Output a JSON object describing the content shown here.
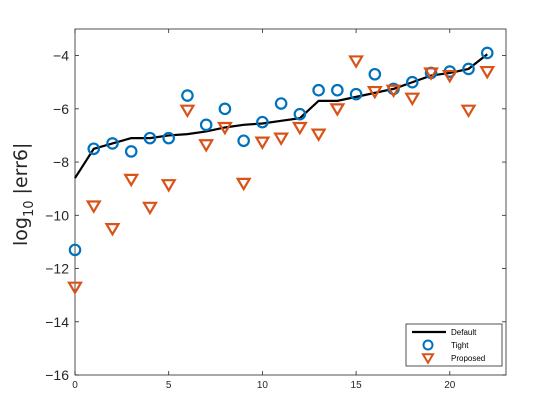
{
  "chart_data": {
    "type": "scatter",
    "ylabel": {
      "base": "log",
      "subscript": "10",
      "rest": " |err6|"
    },
    "xlim": [
      0,
      23
    ],
    "ylim": [
      -16,
      -3
    ],
    "x_ticks": [
      0,
      5,
      10,
      15,
      20
    ],
    "y_ticks": [
      -16,
      -14,
      -12,
      -10,
      -8,
      -6,
      -4
    ],
    "x_tick_labels": [
      "0",
      "5",
      "10",
      "15",
      "20"
    ],
    "y_tick_labels": [
      "−16",
      "−14",
      "−12",
      "−10",
      "−8",
      "−6",
      "−4"
    ],
    "grid": false,
    "legend_position": "bottom-right",
    "series": [
      {
        "name": "Default",
        "kind": "line",
        "color": "#000000",
        "x": [
          0,
          1,
          2,
          3,
          4,
          5,
          6,
          7,
          8,
          9,
          10,
          11,
          12,
          13,
          14,
          15,
          16,
          17,
          18,
          19,
          20,
          21,
          22
        ],
        "y": [
          -8.6,
          -7.5,
          -7.3,
          -7.1,
          -7.1,
          -7.0,
          -6.95,
          -6.85,
          -6.7,
          -6.6,
          -6.55,
          -6.45,
          -6.35,
          -5.7,
          -5.7,
          -5.55,
          -5.4,
          -5.25,
          -5.0,
          -4.75,
          -4.65,
          -4.5,
          -3.95
        ]
      },
      {
        "name": "Tight",
        "kind": "circle",
        "color": "#0072BD",
        "x": [
          0,
          1,
          2,
          3,
          4,
          5,
          6,
          7,
          8,
          9,
          10,
          11,
          12,
          13,
          14,
          15,
          16,
          17,
          18,
          19,
          20,
          21,
          22
        ],
        "y": [
          -11.3,
          -7.5,
          -7.3,
          -7.6,
          -7.1,
          -7.1,
          -5.5,
          -6.6,
          -6.0,
          -7.2,
          -6.5,
          -5.8,
          -6.2,
          -5.3,
          -5.3,
          -5.45,
          -4.7,
          -5.25,
          -5.0,
          -4.65,
          -4.6,
          -4.5,
          -3.9
        ]
      },
      {
        "name": "Proposed",
        "kind": "triangle-down",
        "color": "#D95319",
        "x": [
          0,
          1,
          2,
          3,
          4,
          5,
          6,
          7,
          8,
          9,
          10,
          11,
          12,
          13,
          14,
          15,
          16,
          17,
          18,
          19,
          20,
          21,
          22
        ],
        "y": [
          -12.7,
          -9.65,
          -10.5,
          -8.65,
          -9.7,
          -8.85,
          -6.05,
          -7.35,
          -6.7,
          -8.8,
          -7.25,
          -7.1,
          -6.7,
          -6.95,
          -6.0,
          -4.2,
          -5.35,
          -5.3,
          -5.6,
          -4.65,
          -4.75,
          -6.05,
          -4.6
        ]
      }
    ]
  }
}
